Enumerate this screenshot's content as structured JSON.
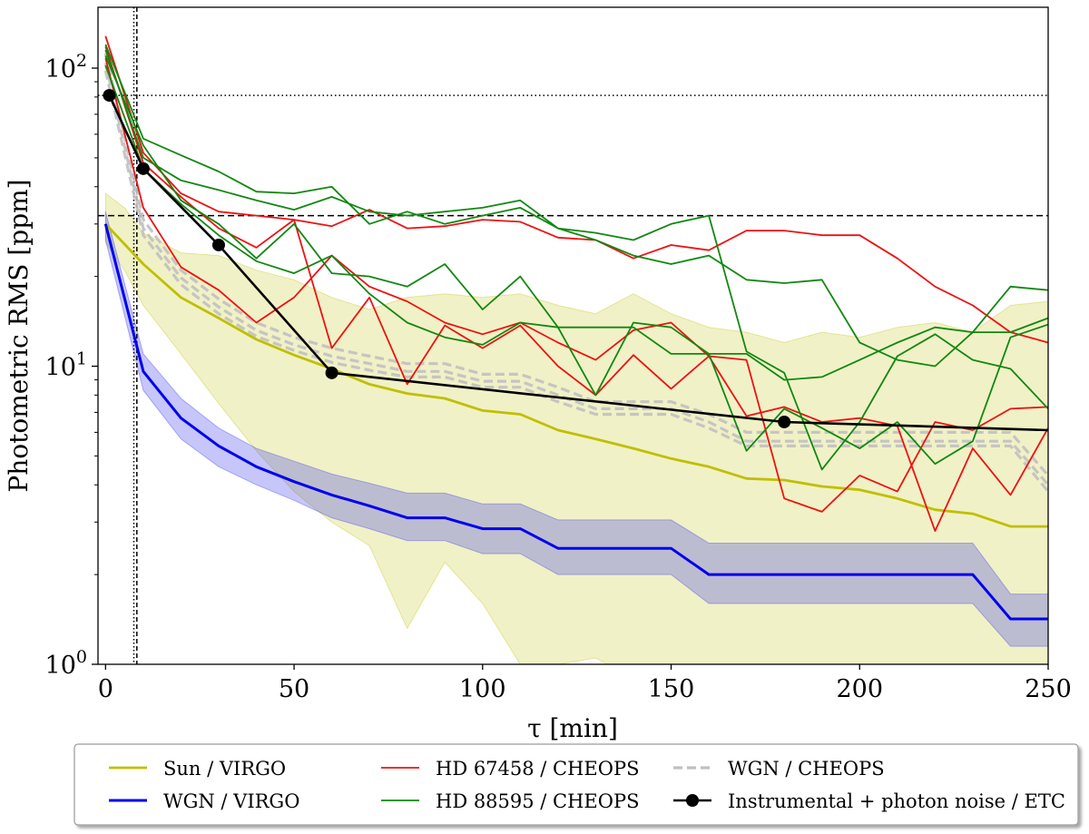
{
  "chart_data": {
    "type": "line",
    "title": "",
    "xlabel": "τ [min]",
    "ylabel": "Photometric RMS [ppm]",
    "xlim": [
      -2,
      250
    ],
    "ylim": [
      1,
      160
    ],
    "yscale": "log",
    "x_ticks": [
      0,
      50,
      100,
      150,
      200,
      250
    ],
    "x_tick_labels": [
      "0",
      "50",
      "100",
      "150",
      "200",
      "250"
    ],
    "y_ticks": [
      1,
      10,
      100
    ],
    "y_tick_base": "10",
    "y_tick_exponents": [
      "0",
      "1",
      "2"
    ],
    "reference_lines": {
      "vertical": [
        {
          "x": 7.5,
          "style": "dotted"
        },
        {
          "x": 8.3,
          "style": "dashed"
        }
      ],
      "horizontal": [
        {
          "y": 81,
          "style": "dotted"
        },
        {
          "y": 32,
          "style": "dashed"
        }
      ]
    },
    "bands": [
      {
        "name": "Sun / VIRGO spread",
        "color": "#bfbf00",
        "opacity": 0.22,
        "x": [
          0,
          5,
          10,
          20,
          30,
          40,
          50,
          60,
          70,
          80,
          90,
          100,
          110,
          120,
          130,
          140,
          150,
          160,
          170,
          180,
          190,
          200,
          210,
          220,
          230,
          240,
          250
        ],
        "upper": [
          38,
          34,
          28,
          24,
          23.5,
          21,
          19.5,
          17,
          15.5,
          17,
          17.5,
          17,
          17.5,
          16,
          15,
          17.5,
          15,
          13.5,
          13,
          12,
          13,
          12.5,
          13.5,
          14,
          13,
          16,
          16.5
        ],
        "lower": [
          26,
          21,
          16,
          11,
          7.5,
          5.2,
          3.8,
          3.0,
          2.5,
          1.32,
          2.2,
          1.6,
          1.0,
          1.0,
          1.05,
          0.9,
          0.9,
          0.9,
          0.9,
          0.9,
          0.9,
          0.9,
          0.9,
          0.9,
          0.9,
          0.9,
          0.9
        ]
      },
      {
        "name": "WGN / VIRGO spread",
        "color": "#3333ee",
        "opacity": 0.28,
        "x": [
          0,
          10,
          20,
          30,
          40,
          50,
          60,
          70,
          80,
          90,
          100,
          110,
          120,
          130,
          140,
          150,
          160,
          170,
          180,
          190,
          200,
          210,
          220,
          230,
          240,
          250
        ],
        "upper": [
          33,
          11,
          7.8,
          6.2,
          5.3,
          4.8,
          4.35,
          4.05,
          3.75,
          3.75,
          3.45,
          3.45,
          3.05,
          3.05,
          3.05,
          3.05,
          2.55,
          2.55,
          2.55,
          2.55,
          2.55,
          2.55,
          2.55,
          2.55,
          1.72,
          1.72
        ],
        "lower": [
          26.5,
          8.3,
          5.7,
          4.6,
          4.0,
          3.55,
          3.1,
          2.85,
          2.6,
          2.6,
          2.35,
          2.35,
          2.0,
          2.0,
          2.0,
          2.0,
          1.6,
          1.6,
          1.6,
          1.6,
          1.6,
          1.6,
          1.6,
          1.6,
          1.15,
          1.15
        ]
      }
    ],
    "series": [
      {
        "name": "WGN / CHEOPS",
        "color": "#c0c0c0",
        "style": "dashed",
        "width": 3.2,
        "opacity": 0.9,
        "x": [
          0,
          10,
          20,
          30,
          40,
          50,
          60,
          70,
          80,
          90,
          100,
          110,
          120,
          130,
          140,
          150,
          160,
          170,
          180,
          190,
          200,
          210,
          220,
          230,
          240,
          250
        ],
        "y": [
          112,
          31,
          21,
          16.8,
          14,
          12.5,
          11.5,
          10.8,
          10.2,
          10.2,
          9.4,
          9.4,
          8.5,
          7.6,
          7.6,
          7.6,
          6.9,
          6.0,
          6.0,
          6.0,
          6.0,
          6.0,
          6.0,
          6.0,
          6.0,
          4.3
        ]
      },
      {
        "name": "WGN / CHEOPS",
        "color": "#c0c0c0",
        "style": "dashed",
        "width": 3.2,
        "opacity": 0.9,
        "x": [
          0,
          10,
          20,
          30,
          40,
          50,
          60,
          70,
          80,
          90,
          100,
          110,
          120,
          130,
          140,
          150,
          160,
          170,
          180,
          190,
          200,
          210,
          220,
          230,
          240,
          250
        ],
        "y": [
          104,
          29,
          19.8,
          15.8,
          13.2,
          11.8,
          10.8,
          10.2,
          9.6,
          9.6,
          8.9,
          8.9,
          8.0,
          7.2,
          7.2,
          7.2,
          6.5,
          5.6,
          5.6,
          5.6,
          5.6,
          5.6,
          5.6,
          5.6,
          5.6,
          4.0
        ]
      },
      {
        "name": "WGN / CHEOPS",
        "color": "#c0c0c0",
        "style": "dashed",
        "width": 3.2,
        "opacity": 0.9,
        "x": [
          0,
          10,
          20,
          30,
          40,
          50,
          60,
          70,
          80,
          90,
          100,
          110,
          120,
          130,
          140,
          150,
          160,
          170,
          180,
          190,
          200,
          210,
          220,
          230,
          240,
          250
        ],
        "y": [
          98,
          27.5,
          18.8,
          15,
          12.6,
          11.3,
          10.3,
          9.7,
          9.2,
          9.2,
          8.5,
          8.5,
          7.6,
          6.9,
          6.9,
          6.9,
          6.2,
          5.4,
          5.4,
          5.4,
          5.4,
          5.4,
          5.4,
          5.4,
          5.4,
          3.8
        ]
      },
      {
        "name": "Sun / VIRGO",
        "color": "#bfbf00",
        "style": "solid",
        "width": 2.8,
        "x": [
          0,
          10,
          20,
          30,
          40,
          50,
          60,
          70,
          80,
          90,
          100,
          110,
          120,
          130,
          140,
          150,
          160,
          170,
          180,
          190,
          200,
          210,
          220,
          230,
          240,
          250
        ],
        "y": [
          30,
          22,
          17,
          14.5,
          12.3,
          10.9,
          9.8,
          8.7,
          8.1,
          7.8,
          7.1,
          6.9,
          6.1,
          5.7,
          5.3,
          4.9,
          4.6,
          4.2,
          4.15,
          3.95,
          3.85,
          3.6,
          3.3,
          3.2,
          2.9,
          2.9
        ]
      },
      {
        "name": "WGN / VIRGO",
        "color": "#0000ee",
        "style": "solid",
        "width": 3,
        "x": [
          0,
          10,
          20,
          30,
          40,
          50,
          60,
          70,
          80,
          90,
          100,
          110,
          120,
          130,
          140,
          150,
          160,
          170,
          180,
          190,
          200,
          210,
          220,
          230,
          240,
          250
        ],
        "y": [
          30,
          9.6,
          6.7,
          5.4,
          4.6,
          4.1,
          3.7,
          3.4,
          3.1,
          3.1,
          2.85,
          2.85,
          2.45,
          2.45,
          2.45,
          2.45,
          2.0,
          2.0,
          2.0,
          2.0,
          2.0,
          2.0,
          2.0,
          2.0,
          1.42,
          1.42
        ]
      },
      {
        "name": "HD 67458 / CHEOPS",
        "color": "#ee1111",
        "style": "solid",
        "width": 1.8,
        "x": [
          0,
          10,
          20,
          30,
          40,
          50,
          60,
          70,
          80,
          90,
          100,
          110,
          120,
          130,
          140,
          150,
          160,
          170,
          180,
          190,
          200,
          210,
          220,
          230,
          240,
          250
        ],
        "y": [
          128,
          52,
          38,
          33,
          32,
          31,
          29.5,
          33.5,
          29,
          29.5,
          31,
          30.5,
          27,
          26.5,
          23,
          25.5,
          24.5,
          28.5,
          28.5,
          27.5,
          27.5,
          23,
          18.5,
          16,
          13,
          12
        ]
      },
      {
        "name": "HD 67458 / CHEOPS",
        "color": "#ee1111",
        "style": "solid",
        "width": 1.8,
        "x": [
          0,
          10,
          20,
          30,
          40,
          50,
          60,
          70,
          80,
          90,
          100,
          110,
          120,
          130,
          140,
          150,
          160,
          170,
          180,
          190,
          200,
          210,
          220,
          230,
          240,
          250
        ],
        "y": [
          108,
          34,
          21.5,
          18,
          14,
          17,
          23.5,
          18.5,
          16.5,
          14,
          12.8,
          14,
          12,
          10.5,
          13.2,
          14,
          10.8,
          6.8,
          7.3,
          6.5,
          6.7,
          6.3,
          2.8,
          5.3,
          3.7,
          6.2
        ]
      },
      {
        "name": "HD 67458 / CHEOPS",
        "color": "#ee1111",
        "style": "solid",
        "width": 1.8,
        "x": [
          0,
          10,
          20,
          30,
          40,
          50,
          60,
          70,
          80,
          90,
          100,
          110,
          120,
          130,
          140,
          150,
          160,
          170,
          180,
          190,
          200,
          210,
          220,
          230,
          240,
          250
        ],
        "y": [
          118,
          48,
          37,
          29,
          25,
          31,
          11.5,
          17,
          8.7,
          13.7,
          11.5,
          13.7,
          10,
          8.0,
          10.9,
          8.4,
          10.8,
          10.5,
          3.6,
          3.25,
          4.3,
          3.8,
          6.5,
          6.1,
          7.2,
          7.3
        ]
      },
      {
        "name": "HD 88595 / CHEOPS",
        "color": "#118811",
        "style": "solid",
        "width": 1.8,
        "x": [
          0,
          10,
          20,
          30,
          40,
          50,
          60,
          70,
          80,
          90,
          100,
          110,
          120,
          130,
          140,
          150,
          160,
          170,
          180,
          190,
          200,
          210,
          220,
          230,
          240,
          250
        ],
        "y": [
          120,
          58,
          51,
          45,
          38.5,
          38,
          40,
          30,
          33,
          30,
          32,
          34,
          29,
          26.5,
          23.5,
          22,
          23.5,
          19.5,
          19,
          19.5,
          12,
          10.5,
          10,
          13,
          18.5,
          18
        ]
      },
      {
        "name": "HD 88595 / CHEOPS",
        "color": "#118811",
        "style": "solid",
        "width": 1.8,
        "x": [
          0,
          10,
          20,
          30,
          40,
          50,
          60,
          70,
          80,
          90,
          100,
          110,
          120,
          130,
          140,
          150,
          160,
          170,
          180,
          190,
          200,
          210,
          220,
          230,
          240,
          250
        ],
        "y": [
          115,
          50,
          42,
          39,
          36,
          33.5,
          37,
          33,
          32,
          33,
          34,
          36,
          29,
          28,
          26.5,
          30,
          32,
          11.2,
          9.5,
          4.5,
          6.5,
          10.8,
          12.8,
          10.5,
          9.8,
          7.2
        ]
      },
      {
        "name": "HD 88595 / CHEOPS",
        "color": "#118811",
        "style": "solid",
        "width": 1.8,
        "x": [
          0,
          10,
          20,
          30,
          40,
          50,
          60,
          70,
          80,
          90,
          100,
          110,
          120,
          130,
          140,
          150,
          160,
          170,
          180,
          190,
          200,
          210,
          220,
          230,
          240,
          250
        ],
        "y": [
          110,
          55,
          36,
          30,
          23,
          30,
          20.5,
          20,
          18.5,
          22,
          15.5,
          20,
          13.5,
          8.0,
          14,
          13.5,
          11,
          11,
          9.0,
          9.2,
          10.5,
          12,
          13.5,
          13,
          13,
          14.5
        ]
      },
      {
        "name": "HD 88595 / CHEOPS",
        "color": "#118811",
        "style": "solid",
        "width": 1.8,
        "x": [
          0,
          10,
          20,
          30,
          40,
          50,
          60,
          70,
          80,
          90,
          100,
          110,
          120,
          130,
          140,
          150,
          160,
          170,
          180,
          190,
          200,
          210,
          220,
          230,
          240,
          250
        ],
        "y": [
          102,
          46,
          35,
          27.5,
          22.5,
          20.5,
          23.5,
          17.5,
          14,
          12.5,
          11.8,
          14,
          13.5,
          13.5,
          13.5,
          11,
          11,
          5.2,
          7.2,
          6.2,
          5.3,
          6.5,
          4.7,
          5.6,
          12.5,
          13.8
        ]
      },
      {
        "name": "Instrumental + photon noise / ETC",
        "color": "#000000",
        "style": "solid",
        "width": 2.6,
        "markers": true,
        "x": [
          1,
          10,
          30,
          60,
          180,
          250
        ],
        "y": [
          81,
          46,
          25.5,
          9.5,
          6.5,
          6.1
        ],
        "marker_x": [
          1,
          10,
          30,
          60,
          180
        ],
        "marker_y": [
          81,
          46,
          25.5,
          9.5,
          6.5
        ]
      }
    ],
    "legend": {
      "placement": "bottom",
      "entries": [
        {
          "label": "Sun / VIRGO",
          "color": "#bfbf00",
          "style": "solid",
          "width": 2.8
        },
        {
          "label": "HD 67458 / CHEOPS",
          "color": "#ee1111",
          "style": "solid",
          "width": 1.8
        },
        {
          "label": "WGN / CHEOPS",
          "color": "#c0c0c0",
          "style": "dashed",
          "width": 3.2
        },
        {
          "label": "WGN / VIRGO",
          "color": "#0000ee",
          "style": "solid",
          "width": 3
        },
        {
          "label": "HD 88595 / CHEOPS",
          "color": "#118811",
          "style": "solid",
          "width": 1.8
        },
        {
          "label": "Instrumental + photon noise / ETC",
          "color": "#000000",
          "style": "solid",
          "width": 2.6,
          "marker": true
        }
      ]
    }
  }
}
